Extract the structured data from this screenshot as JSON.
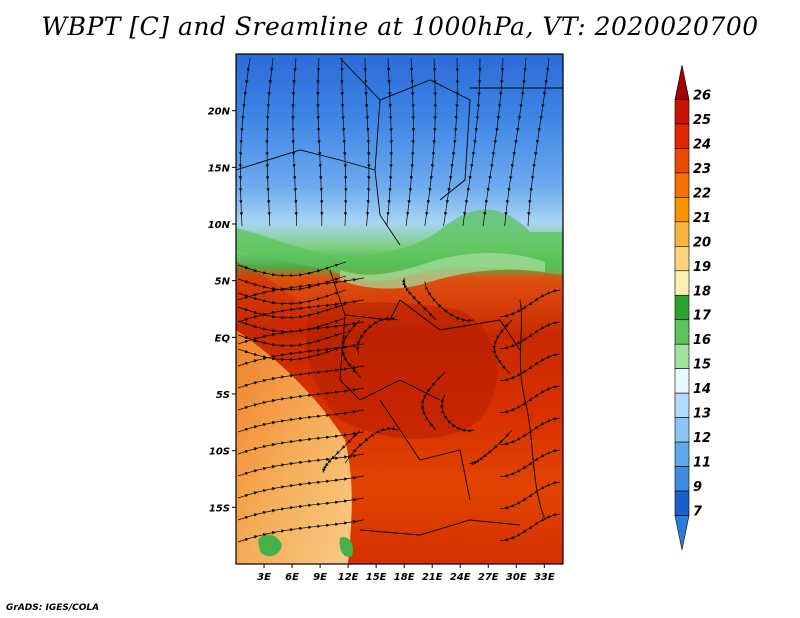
{
  "title": "WBPT [C] and Sreamline at 1000hPa, VT: 2020020700",
  "footer": "GrADS: IGES/COLA",
  "map": {
    "lon_range": [
      0,
      35
    ],
    "lat_range": [
      -20,
      25
    ],
    "lon_labels": [
      {
        "lon": 3,
        "label": "3E"
      },
      {
        "lon": 6,
        "label": "6E"
      },
      {
        "lon": 9,
        "label": "9E"
      },
      {
        "lon": 12,
        "label": "12E"
      },
      {
        "lon": 15,
        "label": "15E"
      },
      {
        "lon": 18,
        "label": "18E"
      },
      {
        "lon": 21,
        "label": "21E"
      },
      {
        "lon": 24,
        "label": "24E"
      },
      {
        "lon": 27,
        "label": "27E"
      },
      {
        "lon": 30,
        "label": "30E"
      },
      {
        "lon": 33,
        "label": "33E"
      }
    ],
    "lat_labels": [
      {
        "lat": 20,
        "label": "20N"
      },
      {
        "lat": 15,
        "label": "15N"
      },
      {
        "lat": 10,
        "label": "10N"
      },
      {
        "lat": 5,
        "label": "5N"
      },
      {
        "lat": 0,
        "label": "EQ"
      },
      {
        "lat": -5,
        "label": "5S"
      },
      {
        "lat": -10,
        "label": "10S"
      },
      {
        "lat": -15,
        "label": "15S"
      }
    ]
  },
  "colorbar": {
    "labels": [
      "26",
      "25",
      "24",
      "23",
      "22",
      "21",
      "20",
      "19",
      "18",
      "17",
      "16",
      "15",
      "14",
      "13",
      "12",
      "11",
      "9",
      "7"
    ],
    "colors": [
      "#a50000",
      "#c81400",
      "#e02800",
      "#ec4a00",
      "#f47000",
      "#f89000",
      "#f8b440",
      "#fcd47c",
      "#fcf0b0",
      "#2ca32c",
      "#5cc45c",
      "#a0e4a0",
      "#e8f8ff",
      "#b4dcfc",
      "#8cc4f4",
      "#60a8ec",
      "#3c8ce0",
      "#1a5ed0",
      "#2c7ce4"
    ]
  }
}
